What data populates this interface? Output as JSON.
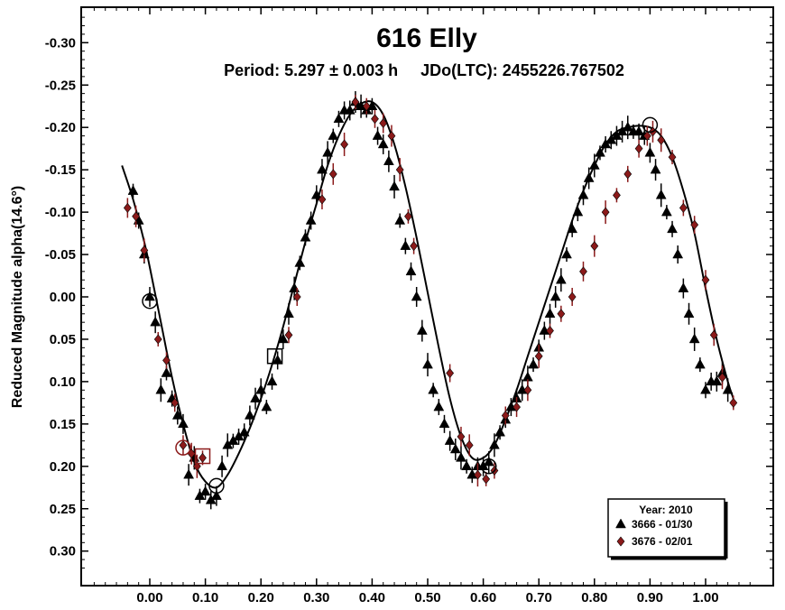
{
  "chart_data": {
    "type": "scatter",
    "title": "616 Elly",
    "subtitle": "Period: 5.297 ± 0.003 h     JDo(LTC): 2455226.767502",
    "xlabel": "",
    "ylabel": "Reduced Magnitude alpha(14.6°)",
    "xlim": [
      -0.12,
      1.12
    ],
    "ylim": [
      -0.34,
      0.34
    ],
    "y_inverted": true,
    "x_ticks": [
      "0.00",
      "0.10",
      "0.20",
      "0.30",
      "0.40",
      "0.50",
      "0.60",
      "0.70",
      "0.80",
      "0.90",
      "1.00"
    ],
    "x_tick_values": [
      0.0,
      0.1,
      0.2,
      0.3,
      0.4,
      0.5,
      0.6,
      0.7,
      0.8,
      0.9,
      1.0
    ],
    "y_ticks": [
      "-0.30",
      "-0.25",
      "-0.20",
      "-0.15",
      "-0.10",
      "-0.05",
      "0.00",
      "0.05",
      "0.10",
      "0.15",
      "0.20",
      "0.25",
      "0.30"
    ],
    "y_tick_values": [
      -0.3,
      -0.25,
      -0.2,
      -0.15,
      -0.1,
      -0.05,
      0.0,
      0.05,
      0.1,
      0.15,
      0.2,
      0.25,
      0.3
    ],
    "grid": false,
    "legend": {
      "position": "bottom-right",
      "title": "Year: 2010",
      "entries": [
        {
          "label": "3666 - 01/30",
          "marker": "triangle",
          "color": "#000000"
        },
        {
          "label": "3676 - 02/01",
          "marker": "diamond",
          "color": "#8b1a1a"
        }
      ]
    },
    "fit_curve": {
      "x": [
        -0.05,
        -0.03,
        -0.01,
        0.0,
        0.02,
        0.04,
        0.06,
        0.08,
        0.1,
        0.12,
        0.14,
        0.16,
        0.18,
        0.2,
        0.22,
        0.24,
        0.26,
        0.28,
        0.3,
        0.32,
        0.34,
        0.36,
        0.38,
        0.4,
        0.42,
        0.44,
        0.46,
        0.48,
        0.5,
        0.52,
        0.54,
        0.56,
        0.58,
        0.6,
        0.62,
        0.64,
        0.66,
        0.68,
        0.7,
        0.72,
        0.74,
        0.76,
        0.78,
        0.8,
        0.82,
        0.84,
        0.86,
        0.88,
        0.9,
        0.92,
        0.94,
        0.96,
        0.98,
        1.0,
        1.02,
        1.04,
        1.05
      ],
      "y": [
        -0.155,
        -0.115,
        -0.065,
        -0.035,
        0.03,
        0.095,
        0.15,
        0.195,
        0.218,
        0.225,
        0.21,
        0.185,
        0.155,
        0.12,
        0.08,
        0.035,
        -0.015,
        -0.065,
        -0.11,
        -0.155,
        -0.19,
        -0.215,
        -0.228,
        -0.23,
        -0.215,
        -0.18,
        -0.13,
        -0.07,
        -0.005,
        0.06,
        0.12,
        0.165,
        0.19,
        0.19,
        0.175,
        0.145,
        0.11,
        0.07,
        0.03,
        -0.01,
        -0.05,
        -0.09,
        -0.125,
        -0.155,
        -0.18,
        -0.195,
        -0.2,
        -0.202,
        -0.2,
        -0.19,
        -0.165,
        -0.125,
        -0.075,
        -0.01,
        0.05,
        0.1,
        0.12
      ]
    },
    "series": [
      {
        "name": "3666 - 01/30",
        "marker": "triangle",
        "color": "#000000",
        "x": [
          -0.03,
          -0.02,
          -0.01,
          0.0,
          0.01,
          0.02,
          0.03,
          0.04,
          0.05,
          0.06,
          0.07,
          0.08,
          0.09,
          0.1,
          0.11,
          0.12,
          0.13,
          0.14,
          0.15,
          0.16,
          0.17,
          0.18,
          0.19,
          0.2,
          0.21,
          0.22,
          0.23,
          0.24,
          0.25,
          0.26,
          0.27,
          0.28,
          0.29,
          0.3,
          0.31,
          0.32,
          0.33,
          0.34,
          0.35,
          0.36,
          0.37,
          0.38,
          0.39,
          0.4,
          0.41,
          0.42,
          0.43,
          0.44,
          0.45,
          0.46,
          0.47,
          0.48,
          0.49,
          0.5,
          0.51,
          0.52,
          0.53,
          0.54,
          0.55,
          0.56,
          0.57,
          0.58,
          0.59,
          0.6,
          0.61,
          0.62,
          0.63,
          0.64,
          0.65,
          0.66,
          0.67,
          0.68,
          0.69,
          0.7,
          0.71,
          0.72,
          0.73,
          0.74,
          0.75,
          0.76,
          0.77,
          0.78,
          0.79,
          0.8,
          0.81,
          0.82,
          0.83,
          0.84,
          0.85,
          0.86,
          0.87,
          0.88,
          0.89,
          0.9,
          0.91,
          0.92,
          0.93,
          0.94,
          0.95,
          0.96,
          0.97,
          0.98,
          0.99,
          1.0,
          1.01,
          1.02,
          1.03,
          1.04
        ],
        "y": [
          -0.125,
          -0.09,
          -0.05,
          0.0,
          0.03,
          0.11,
          0.09,
          0.12,
          0.14,
          0.15,
          0.21,
          0.19,
          0.235,
          0.23,
          0.24,
          0.235,
          0.2,
          0.175,
          0.17,
          0.165,
          0.16,
          0.14,
          0.12,
          0.11,
          0.13,
          0.1,
          0.075,
          0.05,
          0.02,
          -0.01,
          -0.04,
          -0.07,
          -0.09,
          -0.12,
          -0.15,
          -0.17,
          -0.19,
          -0.21,
          -0.22,
          -0.22,
          -0.23,
          -0.225,
          -0.22,
          -0.225,
          -0.19,
          -0.18,
          -0.16,
          -0.13,
          -0.09,
          -0.06,
          -0.03,
          0.0,
          0.04,
          0.08,
          0.11,
          0.13,
          0.15,
          0.17,
          0.18,
          0.19,
          0.2,
          0.21,
          0.2,
          0.2,
          0.195,
          0.175,
          0.16,
          0.145,
          0.13,
          0.12,
          0.11,
          0.095,
          0.08,
          0.06,
          0.04,
          0.02,
          0.0,
          -0.02,
          -0.05,
          -0.08,
          -0.1,
          -0.12,
          -0.14,
          -0.155,
          -0.17,
          -0.18,
          -0.185,
          -0.19,
          -0.195,
          -0.2,
          -0.195,
          -0.195,
          -0.19,
          -0.17,
          -0.15,
          -0.12,
          -0.1,
          -0.08,
          -0.05,
          -0.01,
          0.02,
          0.05,
          0.08,
          0.11,
          0.1,
          0.1,
          0.09,
          0.11
        ]
      },
      {
        "name": "3676 - 02/01",
        "marker": "diamond",
        "color": "#8b1a1a",
        "x": [
          -0.04,
          -0.025,
          -0.01,
          0.015,
          0.03,
          0.045,
          0.06,
          0.075,
          0.085,
          0.095,
          0.25,
          0.265,
          0.31,
          0.33,
          0.35,
          0.37,
          0.39,
          0.405,
          0.42,
          0.435,
          0.45,
          0.465,
          0.475,
          0.54,
          0.56,
          0.575,
          0.59,
          0.605,
          0.62,
          0.64,
          0.66,
          0.68,
          0.7,
          0.72,
          0.74,
          0.76,
          0.78,
          0.8,
          0.82,
          0.84,
          0.86,
          0.88,
          0.895,
          0.905,
          0.92,
          0.94,
          0.96,
          0.98,
          1.0,
          1.015,
          1.03,
          1.05
        ],
        "y": [
          -0.105,
          -0.095,
          -0.055,
          0.05,
          0.075,
          0.125,
          0.175,
          0.185,
          0.2,
          0.19,
          0.045,
          0.0,
          -0.115,
          -0.145,
          -0.18,
          -0.23,
          -0.225,
          -0.21,
          -0.205,
          -0.19,
          -0.15,
          -0.095,
          -0.06,
          0.09,
          0.165,
          0.175,
          0.21,
          0.215,
          0.205,
          0.14,
          0.13,
          0.11,
          0.07,
          0.04,
          0.02,
          0.0,
          -0.03,
          -0.06,
          -0.1,
          -0.12,
          -0.145,
          -0.175,
          -0.19,
          -0.195,
          -0.185,
          -0.165,
          -0.105,
          -0.085,
          -0.02,
          0.045,
          0.095,
          0.125
        ]
      }
    ],
    "highlight_markers": [
      {
        "shape": "circle",
        "x": 0.0,
        "y": 0.005,
        "color": "#000000"
      },
      {
        "shape": "square",
        "x": 0.225,
        "y": 0.07,
        "color": "#000000"
      },
      {
        "shape": "circle",
        "x": 0.06,
        "y": 0.178,
        "color": "#8b1a1a"
      },
      {
        "shape": "square",
        "x": 0.095,
        "y": 0.188,
        "color": "#8b1a1a"
      },
      {
        "shape": "circle",
        "x": 0.12,
        "y": 0.223,
        "color": "#000000"
      },
      {
        "shape": "circle",
        "x": 0.61,
        "y": 0.2,
        "color": "#000000"
      },
      {
        "shape": "circle",
        "x": 0.9,
        "y": -0.203,
        "color": "#000000"
      }
    ]
  }
}
